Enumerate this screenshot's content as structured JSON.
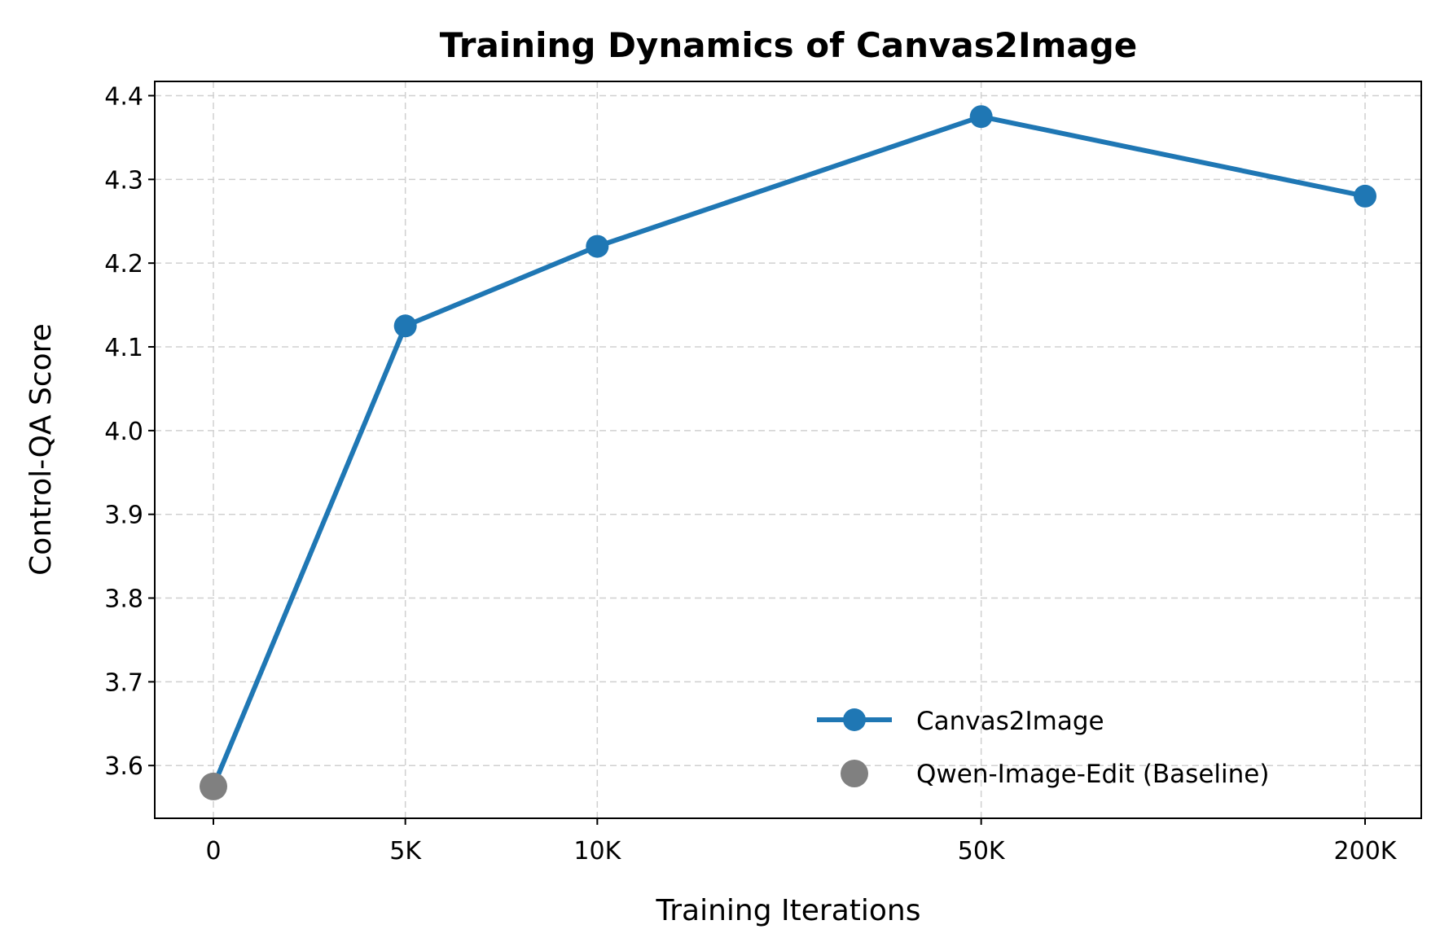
{
  "chart_data": {
    "type": "line",
    "title": "Training Dynamics of Canvas2Image",
    "xlabel": "Training Iterations",
    "ylabel": "Control-QA Score",
    "categories": [
      "0",
      "5K",
      "10K",
      "50K",
      "200K"
    ],
    "yticks": [
      "3.6",
      "3.7",
      "3.8",
      "3.9",
      "4.0",
      "4.1",
      "4.2",
      "4.3",
      "4.4"
    ],
    "ylim": [
      3.537,
      4.417
    ],
    "grid": true,
    "legend_position": "lower-right",
    "series": [
      {
        "name": "Canvas2Image",
        "color": "#1f77b4",
        "values": [
          3.575,
          4.125,
          4.22,
          4.375,
          4.28
        ]
      },
      {
        "name": "Qwen-Image-Edit (Baseline)",
        "color": "#808080",
        "marker_only": true,
        "x_category": "0",
        "value": 3.575
      }
    ]
  }
}
